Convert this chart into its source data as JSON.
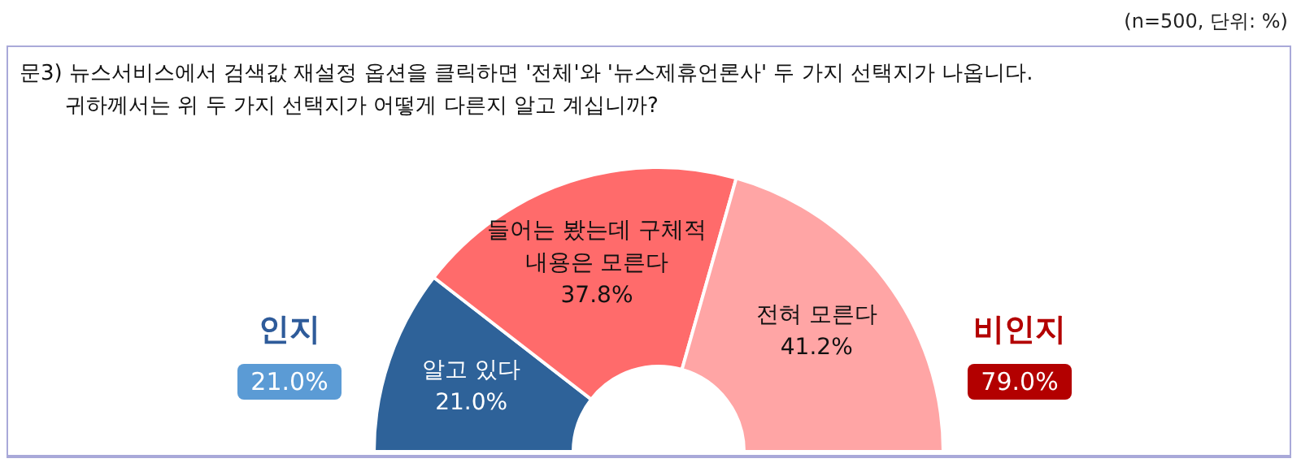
{
  "chart_data": {
    "type": "donut",
    "title": "문3) 뉴스서비스에서 검색값 재설정 옵션을 클릭하면 '전체'와 '뉴스제휴언론사' 두 가지 선택지가 나옵니다.\n귀하께서는 위 두 가지 선택지가 어떻게 다른지 알고 계십니까?",
    "categories": [
      "알고 있다",
      "들어는 봤는데 구체적 내용은 모른다",
      "전혀 모른다"
    ],
    "values": [
      21.0,
      37.8,
      41.2
    ],
    "colors": [
      "#2e6299",
      "#ff6b6b",
      "#ffa5a5"
    ],
    "value_labels": [
      "21.0%",
      "37.8%",
      "41.2%"
    ],
    "legend": false,
    "annotations": [
      "(n=500, 단위: %)",
      "인지",
      "21.0%",
      "비인지",
      "79.0%"
    ]
  }
}
